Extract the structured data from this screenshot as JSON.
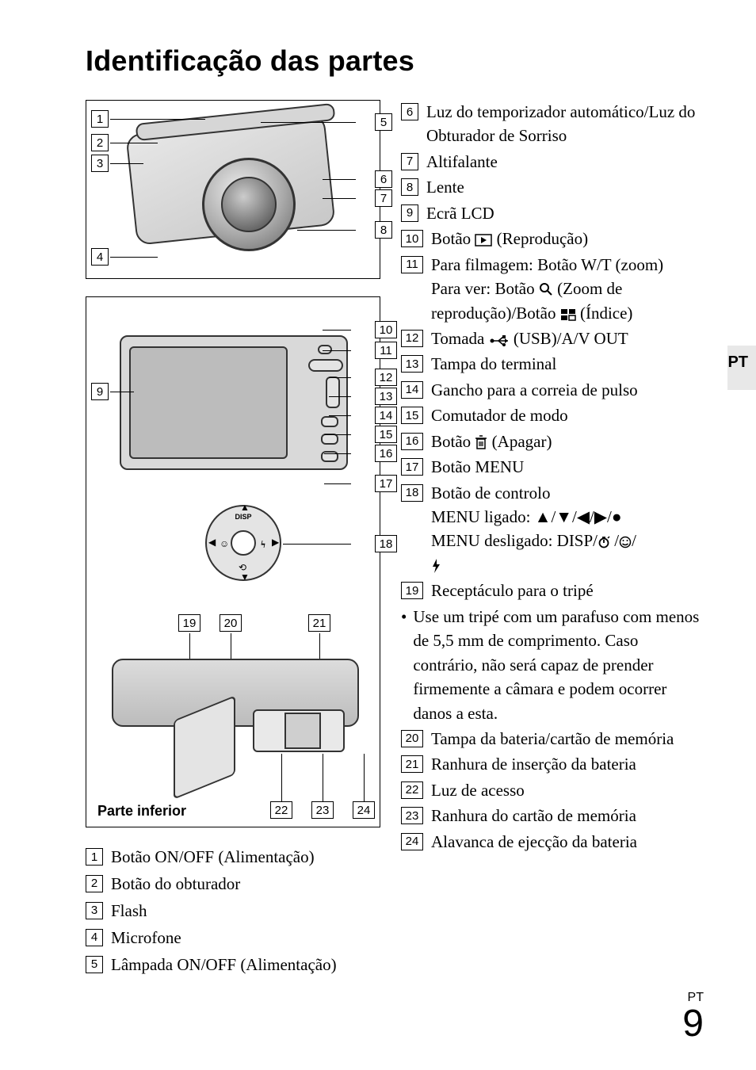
{
  "title": "Identificação das partes",
  "side_lang": "PT",
  "page_label_small": "PT",
  "page_number": "9",
  "fig_bottom_caption": "Parte inferior",
  "callouts_fig1_left": [
    "1",
    "2",
    "3",
    "4"
  ],
  "callouts_fig1_right": [
    "5",
    "6",
    "7",
    "8"
  ],
  "callouts_fig2_left": [
    "9"
  ],
  "callouts_fig2_right": [
    "10",
    "11",
    "12",
    "13",
    "14",
    "15",
    "16",
    "17",
    "18"
  ],
  "callouts_fig2_top_inner": [
    "19",
    "20",
    "21"
  ],
  "callouts_fig2_bottom_inner": [
    "22",
    "23",
    "24"
  ],
  "left_list": [
    {
      "n": "1",
      "t": "Botão ON/OFF (Alimentação)"
    },
    {
      "n": "2",
      "t": "Botão do obturador"
    },
    {
      "n": "3",
      "t": "Flash"
    },
    {
      "n": "4",
      "t": "Microfone"
    },
    {
      "n": "5",
      "t": "Lâmpada ON/OFF (Alimentação)"
    }
  ],
  "right_list_a": [
    {
      "n": "6",
      "t": "Luz do temporizador automático/Luz do Obturador de Sorriso"
    },
    {
      "n": "7",
      "t": "Altifalante"
    },
    {
      "n": "8",
      "t": "Lente"
    },
    {
      "n": "9",
      "t": "Ecrã LCD"
    }
  ],
  "item10_pre": "Botão ",
  "item10_post": " (Reprodução)",
  "item11_l1": "Para filmagem: Botão W/T (zoom)",
  "item11_l2a": "Para ver: Botão ",
  "item11_l2b": " (Zoom de reprodução)/Botão ",
  "item11_l2c": " (Índice)",
  "item12_a": "Tomada ",
  "item12_b": " (USB)/A/V OUT",
  "right_list_b": [
    {
      "n": "13",
      "t": "Tampa do terminal"
    },
    {
      "n": "14",
      "t": "Gancho para a correia de pulso"
    },
    {
      "n": "15",
      "t": "Comutador de modo"
    }
  ],
  "item16_a": "Botão ",
  "item16_b": " (Apagar)",
  "item17": "Botão MENU",
  "item18_l1": "Botão de controlo",
  "item18_l2": "MENU ligado: ▲/▼/◀/▶/●",
  "item18_l3a": "MENU desligado: DISP/",
  "item18_l3b": " /",
  "item18_l3c": "/",
  "item19": "Receptáculo para o tripé",
  "tripod_note": "Use um tripé com um parafuso com menos de 5,5 mm de comprimento. Caso contrário, não será capaz de prender firmemente a câmara e podem ocorrer danos a esta.",
  "right_list_c": [
    {
      "n": "20",
      "t": "Tampa da bateria/cartão de memória"
    },
    {
      "n": "21",
      "t": "Ranhura de inserção da bateria"
    },
    {
      "n": "22",
      "t": "Luz de acesso"
    },
    {
      "n": "23",
      "t": "Ranhura do cartão de memória"
    },
    {
      "n": "24",
      "t": "Alavanca de ejecção da bateria"
    }
  ]
}
